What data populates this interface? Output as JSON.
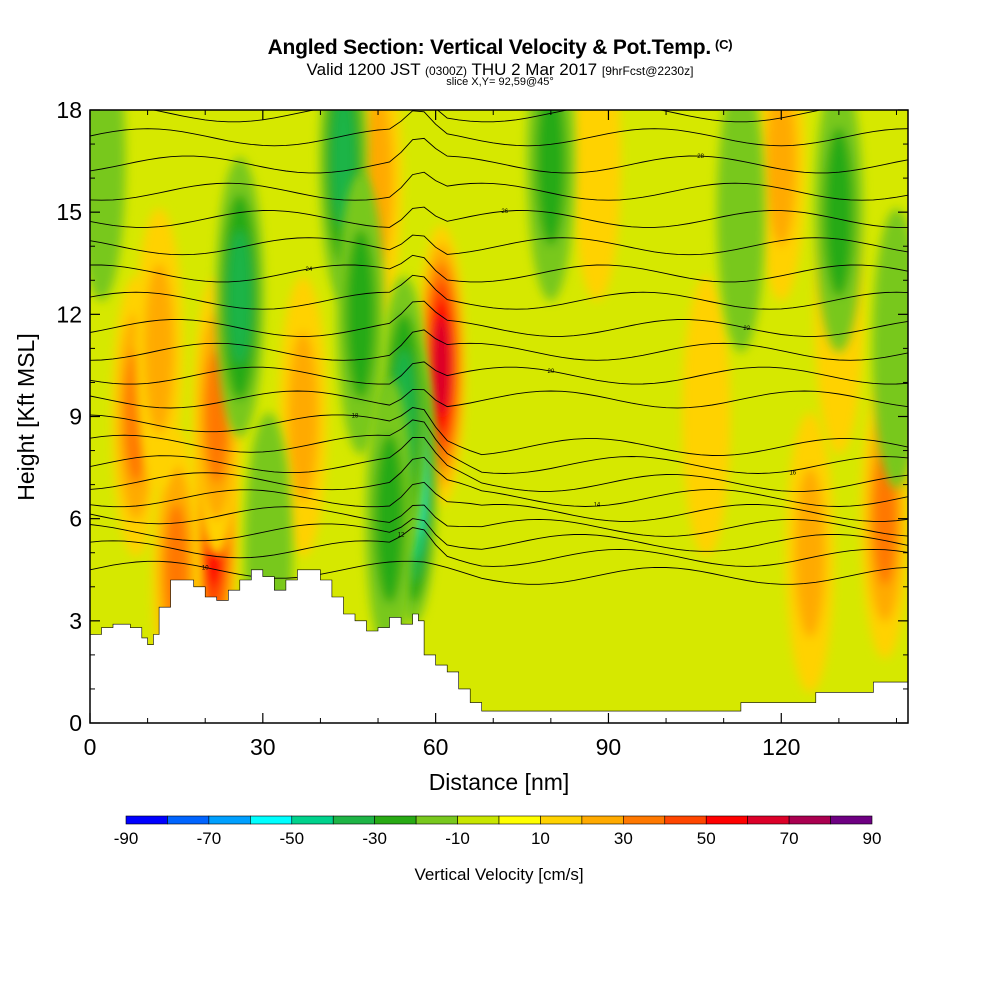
{
  "header": {
    "title": "Angled Section: Vertical Velocity & Pot.Temp.",
    "title_unit": "(C)",
    "valid_prefix": "Valid 1200 JST",
    "valid_zulu": "(0300Z)",
    "valid_date": "THU 2 Mar 2017",
    "forecast_tag": "[9hrFcst@2230z]",
    "slice": "slice X,Y= 92,59@45°"
  },
  "chart_data": {
    "type": "heatmap",
    "title": "Angled Section: Vertical Velocity & Pot.Temp.",
    "xlabel": "Distance [nm]",
    "ylabel": "Height [Kft MSL]",
    "xlim": [
      0,
      142
    ],
    "ylim": [
      0,
      18
    ],
    "x_ticks": [
      "0",
      "30",
      "60",
      "90",
      "120"
    ],
    "y_ticks": [
      "0",
      "3",
      "6",
      "9",
      "12",
      "15",
      "18"
    ],
    "grid": false,
    "colorbar": {
      "label": "Vertical Velocity [cm/s]",
      "tick_labels": [
        "-90",
        "-70",
        "-50",
        "-30",
        "-10",
        "10",
        "30",
        "50",
        "70",
        "90"
      ],
      "bounds": [
        -90,
        -80,
        -70,
        -60,
        -50,
        -40,
        -30,
        -20,
        -10,
        0,
        10,
        20,
        30,
        40,
        50,
        60,
        70,
        80,
        90
      ],
      "colors": [
        "#0000ff",
        "#0064ff",
        "#00a0ff",
        "#00ffff",
        "#00d28c",
        "#1eb446",
        "#28aa14",
        "#78c81e",
        "#c8e600",
        "#ffff00",
        "#ffd200",
        "#ffaa00",
        "#ff7800",
        "#ff4600",
        "#ff0000",
        "#dc0028",
        "#aa0050",
        "#6e0082"
      ]
    },
    "background_color": "#d6e800",
    "updraft_cells": [
      {
        "x": 21.5,
        "y": 5.5,
        "peak": 55
      },
      {
        "x": 61,
        "y": 10.5,
        "peak": 65
      },
      {
        "x": 22,
        "y": 9,
        "peak": 35
      },
      {
        "x": 8,
        "y": 9,
        "peak": 30
      },
      {
        "x": 37,
        "y": 9,
        "peak": 28
      },
      {
        "x": 15,
        "y": 4.5,
        "peak": 35
      },
      {
        "x": 12,
        "y": 11,
        "peak": 25
      },
      {
        "x": 120,
        "y": 16.5,
        "peak": 22
      },
      {
        "x": 88,
        "y": 16.5,
        "peak": 18
      },
      {
        "x": 125,
        "y": 5,
        "peak": 25
      },
      {
        "x": 50,
        "y": 16,
        "peak": 20
      },
      {
        "x": 138,
        "y": 6,
        "peak": 30
      },
      {
        "x": 130,
        "y": 12,
        "peak": 18
      },
      {
        "x": 107,
        "y": 9,
        "peak": 15
      }
    ],
    "downdraft_cells": [
      {
        "x": 56,
        "y": 7,
        "peak": -55
      },
      {
        "x": 54.5,
        "y": 9,
        "peak": -35
      },
      {
        "x": 26,
        "y": 12.5,
        "peak": -35
      },
      {
        "x": 44,
        "y": 16.5,
        "peak": -30
      },
      {
        "x": 47,
        "y": 12,
        "peak": -25
      },
      {
        "x": 52,
        "y": 6,
        "peak": -25
      },
      {
        "x": 2,
        "y": 16.5,
        "peak": -15
      },
      {
        "x": 80,
        "y": 16.5,
        "peak": -20
      },
      {
        "x": 130,
        "y": 15,
        "peak": -20
      },
      {
        "x": 113,
        "y": 15,
        "peak": -15
      },
      {
        "x": 31,
        "y": 5,
        "peak": -15
      },
      {
        "x": 140,
        "y": 11,
        "peak": -15
      }
    ],
    "theta_contours": [
      {
        "base": 4.5,
        "label": "10"
      },
      {
        "base": 5.1,
        "label": ""
      },
      {
        "base": 5.6,
        "label": "12"
      },
      {
        "base": 6.1,
        "label": ""
      },
      {
        "base": 6.6,
        "label": "14"
      },
      {
        "base": 7.1,
        "label": ""
      },
      {
        "base": 7.6,
        "label": "16"
      },
      {
        "base": 8.2,
        "label": ""
      },
      {
        "base": 8.8,
        "label": "18"
      },
      {
        "base": 9.5,
        "label": ""
      },
      {
        "base": 10.2,
        "label": "20"
      },
      {
        "base": 10.9,
        "label": ""
      },
      {
        "base": 11.6,
        "label": "22"
      },
      {
        "base": 12.4,
        "label": ""
      },
      {
        "base": 13.2,
        "label": "24"
      },
      {
        "base": 14.0,
        "label": ""
      },
      {
        "base": 14.8,
        "label": "26"
      },
      {
        "base": 15.6,
        "label": ""
      },
      {
        "base": 16.4,
        "label": "28"
      },
      {
        "base": 17.2,
        "label": ""
      },
      {
        "base": 17.9,
        "label": ""
      }
    ],
    "terrain": [
      [
        0,
        2.6
      ],
      [
        2,
        2.8
      ],
      [
        4,
        2.9
      ],
      [
        7,
        2.8
      ],
      [
        9,
        2.5
      ],
      [
        10,
        2.3
      ],
      [
        11,
        2.6
      ],
      [
        12,
        3.4
      ],
      [
        14,
        4.2
      ],
      [
        16,
        4.2
      ],
      [
        18,
        4.0
      ],
      [
        20,
        3.7
      ],
      [
        22,
        3.6
      ],
      [
        24,
        3.9
      ],
      [
        26,
        4.2
      ],
      [
        28,
        4.5
      ],
      [
        30,
        4.3
      ],
      [
        32,
        3.9
      ],
      [
        34,
        4.2
      ],
      [
        36,
        4.5
      ],
      [
        38,
        4.5
      ],
      [
        40,
        4.2
      ],
      [
        42,
        3.7
      ],
      [
        44,
        3.2
      ],
      [
        46,
        3.0
      ],
      [
        48,
        2.7
      ],
      [
        50,
        2.8
      ],
      [
        52,
        3.1
      ],
      [
        54,
        2.9
      ],
      [
        56,
        3.2
      ],
      [
        57,
        3.0
      ],
      [
        58,
        2.0
      ],
      [
        60,
        1.7
      ],
      [
        62,
        1.5
      ],
      [
        64,
        1.0
      ],
      [
        66,
        0.6
      ],
      [
        68,
        0.35
      ],
      [
        80,
        0.35
      ],
      [
        100,
        0.35
      ],
      [
        112,
        0.35
      ],
      [
        113,
        0.6
      ],
      [
        124,
        0.6
      ],
      [
        126,
        0.9
      ],
      [
        134,
        0.9
      ],
      [
        136,
        1.2
      ],
      [
        142,
        1.3
      ]
    ]
  }
}
